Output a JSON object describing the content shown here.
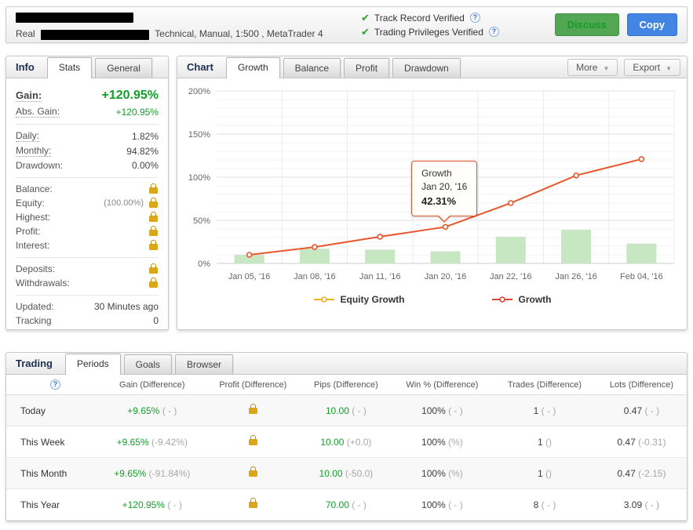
{
  "header": {
    "account_type": "Real",
    "account_meta": "Technical, Manual, 1:500 , MetaTrader 4",
    "verifications": [
      {
        "label": "Track Record Verified"
      },
      {
        "label": "Trading Privileges Verified"
      }
    ],
    "discuss_label": "Discuss",
    "copy_label": "Copy"
  },
  "info_panel": {
    "title": "Info",
    "tabs": [
      "Stats",
      "General"
    ],
    "groups": [
      {
        "rows": [
          {
            "label": "Gain:",
            "value": "+120.95%",
            "style": "green",
            "big": true,
            "underline": true
          },
          {
            "label": "Abs. Gain:",
            "value": "+120.95%",
            "style": "green",
            "underline": true
          }
        ]
      },
      {
        "rows": [
          {
            "label": "Daily:",
            "value": "1.82%",
            "underline": true
          },
          {
            "label": "Monthly:",
            "value": "94.82%",
            "underline": true
          },
          {
            "label": "Drawdown:",
            "value": "0.00%"
          }
        ]
      },
      {
        "rows": [
          {
            "label": "Balance:",
            "lock": true
          },
          {
            "label": "Equity:",
            "value": "(100.00%)",
            "style": "muted",
            "lock": true
          },
          {
            "label": "Highest:",
            "lock": true
          },
          {
            "label": "Profit:",
            "lock": true
          },
          {
            "label": "Interest:",
            "lock": true
          }
        ]
      },
      {
        "rows": [
          {
            "label": "Deposits:",
            "lock": true
          },
          {
            "label": "Withdrawals:",
            "lock": true
          }
        ]
      },
      {
        "rows": [
          {
            "label": "Updated:",
            "value": "30 Minutes ago"
          },
          {
            "label": "Tracking",
            "value": "0"
          }
        ]
      }
    ]
  },
  "chart_panel": {
    "title": "Chart",
    "tabs": [
      {
        "label": "Growth",
        "active": true
      },
      {
        "label": "Balance",
        "active": false
      },
      {
        "label": "Profit",
        "active": false
      },
      {
        "label": "Drawdown",
        "active": false
      }
    ],
    "more_label": "More",
    "export_label": "Export"
  },
  "chart_data": {
    "type": "bar+line",
    "title": "Growth",
    "categories": [
      "Jan 05, '16",
      "Jan 08, '16",
      "Jan 11, '16",
      "Jan 20, '16",
      "Jan 22, '16",
      "Jan 26, '16",
      "Feb 04, '16"
    ],
    "series": [
      {
        "name": "Equity Growth",
        "type": "bar",
        "color": "#c7e6c2",
        "values": [
          10,
          17,
          16,
          14,
          31,
          39,
          23
        ]
      },
      {
        "name": "Growth",
        "type": "line",
        "color": "#e8562c",
        "values": [
          10,
          19,
          31,
          42.31,
          70,
          102,
          120.95
        ]
      }
    ],
    "ylim": [
      0,
      200
    ],
    "ytick_step": 50,
    "minor_step": 10,
    "ytick_suffix": "%",
    "grid": true,
    "legend_position": "bottom",
    "legend": [
      {
        "label": "Equity Growth",
        "color": "#efb021"
      },
      {
        "label": "Growth",
        "color": "#e0452f"
      }
    ],
    "tooltip": {
      "series": "Growth",
      "category": "Jan 20, '16",
      "value": "42.31%",
      "category_index": 3,
      "y": 42.31
    }
  },
  "trading_panel": {
    "title": "Trading",
    "tabs": [
      {
        "label": "Periods",
        "active": true
      },
      {
        "label": "Goals",
        "active": false
      },
      {
        "label": "Browser",
        "active": false
      }
    ],
    "columns": [
      "Gain (Difference)",
      "Profit (Difference)",
      "Pips (Difference)",
      "Win % (Difference)",
      "Trades (Difference)",
      "Lots (Difference)"
    ],
    "rows": [
      {
        "period": "Today",
        "gain": "+9.65%",
        "gain_diff": "( - )",
        "profit_lock": true,
        "pips": "10.00",
        "pips_diff": "( - )",
        "win": "100%",
        "win_diff": "( - )",
        "trades": "1",
        "trades_diff": "( - )",
        "lots": "0.47",
        "lots_diff": "( - )"
      },
      {
        "period": "This Week",
        "gain": "+9.65%",
        "gain_diff": "(-9.42%)",
        "profit_lock": true,
        "pips": "10.00",
        "pips_diff": "(+0.0)",
        "win": "100%",
        "win_diff": "(%)",
        "trades": "1",
        "trades_diff": "()",
        "lots": "0.47",
        "lots_diff": "(-0.31)"
      },
      {
        "period": "This Month",
        "gain": "+9.65%",
        "gain_diff": "(-91.84%)",
        "profit_lock": true,
        "pips": "10.00",
        "pips_diff": "(-50.0)",
        "win": "100%",
        "win_diff": "(%)",
        "trades": "1",
        "trades_diff": "()",
        "lots": "0.47",
        "lots_diff": "(-2.15)"
      },
      {
        "period": "This Year",
        "gain": "+120.95%",
        "gain_diff": "( - )",
        "profit_lock": true,
        "pips": "70.00",
        "pips_diff": "( - )",
        "win": "100%",
        "win_diff": "( - )",
        "trades": "8",
        "trades_diff": "( - )",
        "lots": "3.09",
        "lots_diff": "( - )"
      }
    ]
  },
  "colors": {
    "gain_green": "#149e2a",
    "bar_green": "#c7e6c2",
    "line_orange": "#e8562c",
    "legend_gold": "#efb021",
    "discuss_button": "#53a653",
    "copy_button": "#4285e2",
    "lock_gold": "#dba617",
    "verified_check": "#2ea12e"
  }
}
